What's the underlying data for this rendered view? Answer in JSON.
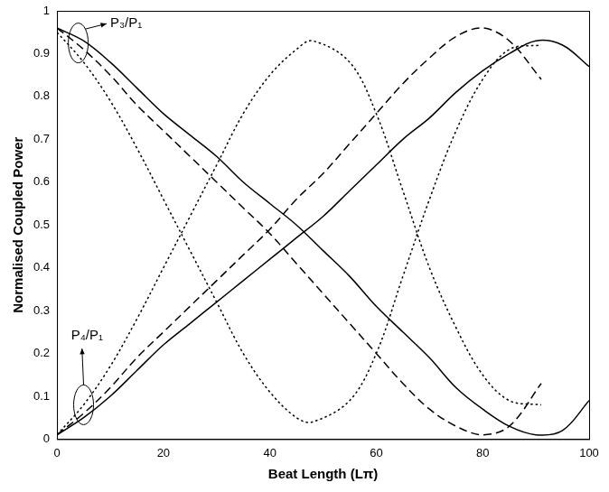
{
  "chart_data": {
    "type": "line",
    "x_label": "Beat Length (Lπ)",
    "y_label": "Normalised Coupled Power",
    "xlim": [
      0,
      100
    ],
    "xticks": [
      0,
      20,
      40,
      60,
      80,
      100
    ],
    "ylim": [
      0,
      1
    ],
    "yticks": [
      0,
      0.1,
      0.2,
      0.3,
      0.4,
      0.5,
      0.6,
      0.7,
      0.8,
      0.9,
      1
    ],
    "grid": false,
    "annotations": [
      {
        "text": "P₃/P₁"
      },
      {
        "text": "P₄/P₁"
      }
    ],
    "series": [
      {
        "color": "#000000",
        "line_style": "solid",
        "x": [
          0,
          5,
          10,
          15,
          20,
          25,
          30,
          35,
          40,
          45,
          50,
          55,
          60,
          65,
          70,
          75,
          80,
          85,
          90,
          95,
          100
        ],
        "values": [
          0.96,
          0.93,
          0.88,
          0.82,
          0.76,
          0.71,
          0.66,
          0.6,
          0.55,
          0.5,
          0.44,
          0.38,
          0.31,
          0.25,
          0.19,
          0.12,
          0.07,
          0.03,
          0.01,
          0.02,
          0.09
        ]
      },
      {
        "color": "#000000",
        "line_style": "solid",
        "x": [
          0,
          5,
          10,
          15,
          20,
          25,
          30,
          35,
          40,
          45,
          50,
          55,
          60,
          65,
          70,
          75,
          80,
          85,
          90,
          95,
          100
        ],
        "values": [
          0.01,
          0.05,
          0.1,
          0.16,
          0.22,
          0.27,
          0.32,
          0.37,
          0.42,
          0.47,
          0.52,
          0.58,
          0.64,
          0.7,
          0.75,
          0.81,
          0.86,
          0.9,
          0.93,
          0.92,
          0.87
        ]
      },
      {
        "color": "#000000",
        "line_style": "dashed",
        "x": [
          0,
          5,
          10,
          15,
          20,
          25,
          30,
          35,
          40,
          45,
          50,
          55,
          60,
          65,
          70,
          75,
          80,
          85,
          91
        ],
        "values": [
          0.96,
          0.91,
          0.85,
          0.78,
          0.72,
          0.66,
          0.6,
          0.54,
          0.48,
          0.41,
          0.34,
          0.27,
          0.2,
          0.13,
          0.07,
          0.03,
          0.01,
          0.03,
          0.13
        ]
      },
      {
        "color": "#000000",
        "line_style": "dashed",
        "x": [
          0,
          5,
          10,
          15,
          20,
          25,
          30,
          35,
          40,
          45,
          50,
          55,
          60,
          65,
          70,
          75,
          80,
          85,
          91
        ],
        "values": [
          0.01,
          0.06,
          0.12,
          0.19,
          0.25,
          0.31,
          0.37,
          0.43,
          0.49,
          0.56,
          0.62,
          0.69,
          0.76,
          0.83,
          0.89,
          0.94,
          0.96,
          0.93,
          0.84
        ]
      },
      {
        "color": "#000000",
        "line_style": "dotted",
        "x": [
          0,
          5,
          10,
          15,
          20,
          25,
          30,
          35,
          40,
          45,
          48,
          55,
          60,
          65,
          70,
          75,
          80,
          85,
          91
        ],
        "values": [
          0.95,
          0.88,
          0.79,
          0.68,
          0.56,
          0.44,
          0.32,
          0.2,
          0.11,
          0.05,
          0.04,
          0.09,
          0.2,
          0.38,
          0.56,
          0.72,
          0.84,
          0.91,
          0.92
        ]
      },
      {
        "color": "#000000",
        "line_style": "dotted",
        "x": [
          0,
          5,
          10,
          15,
          20,
          25,
          30,
          35,
          40,
          45,
          48,
          55,
          60,
          65,
          70,
          75,
          80,
          85,
          91
        ],
        "values": [
          0.01,
          0.08,
          0.17,
          0.28,
          0.4,
          0.52,
          0.64,
          0.76,
          0.85,
          0.91,
          0.93,
          0.88,
          0.76,
          0.58,
          0.4,
          0.26,
          0.15,
          0.09,
          0.08
        ]
      }
    ]
  }
}
